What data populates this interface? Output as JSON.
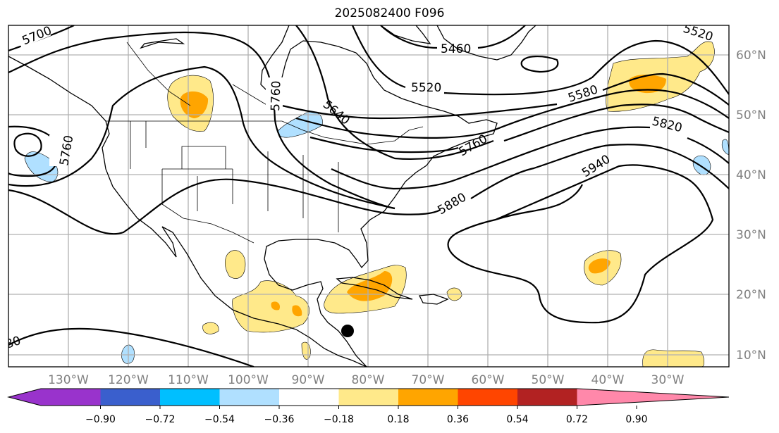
{
  "title": "2025082400 F096",
  "map": {
    "lon_labels": [
      "130°W",
      "120°W",
      "110°W",
      "100°W",
      "90°W",
      "80°W",
      "70°W",
      "60°W",
      "50°W",
      "40°W",
      "30°W"
    ],
    "lat_labels": [
      "60°N",
      "50°N",
      "40°N",
      "30°N",
      "20°N",
      "10°N"
    ],
    "contour_labels": {
      "c5700": "5700",
      "c5760_west": "5760",
      "c5760_canada": "5760",
      "c5640": "5640",
      "c5460": "5460",
      "c5520_east": "5520",
      "c5520_ne": "5520",
      "c5580": "5580",
      "c5760_atl": "5760",
      "c5820": "5820",
      "c5880": "5880",
      "c5940": "5940",
      "c80": "80"
    },
    "storm_marker": "black-dot"
  },
  "colorbar": {
    "ticks": [
      "−0.90",
      "−0.72",
      "−0.54",
      "−0.36",
      "−0.18",
      "0.18",
      "0.36",
      "0.54",
      "0.72",
      "0.90"
    ],
    "colors": [
      "#9933cc",
      "#000080",
      "#3a5fcd",
      "#00bfff",
      "#b0e0ff",
      "#ffffff",
      "#ffe98a",
      "#ffa500",
      "#ff4500",
      "#b22222",
      "#ff88aa"
    ]
  }
}
